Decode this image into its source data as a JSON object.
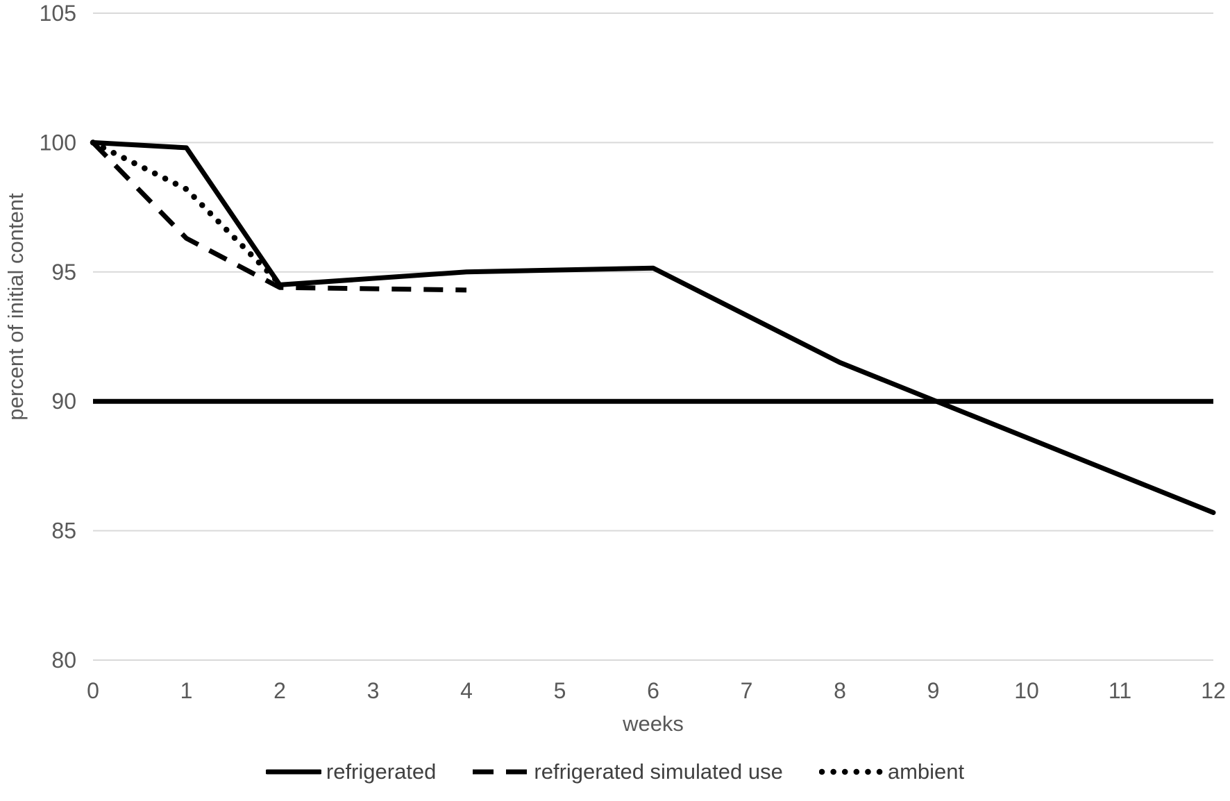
{
  "chart_data": {
    "type": "line",
    "title": "",
    "xlabel": "weeks",
    "ylabel": "percent of initial content",
    "xlim": [
      0,
      12
    ],
    "ylim": [
      80,
      105
    ],
    "x_ticks": [
      0,
      1,
      2,
      3,
      4,
      5,
      6,
      7,
      8,
      9,
      10,
      11,
      12
    ],
    "y_ticks": [
      105,
      100,
      95,
      90,
      85,
      80
    ],
    "grid": "horizontal-light-gray",
    "legend_position": "bottom-center",
    "series": [
      {
        "name": "refrigerated",
        "style": "solid",
        "color": "#000000",
        "points": [
          [
            0,
            100
          ],
          [
            1,
            99.8
          ],
          [
            2,
            94.5
          ],
          [
            4,
            95.0
          ],
          [
            6,
            95.15
          ],
          [
            8,
            91.5
          ],
          [
            12,
            85.7
          ]
        ]
      },
      {
        "name": "refrigerated simulated use",
        "style": "dashed",
        "color": "#000000",
        "points": [
          [
            0,
            100
          ],
          [
            1,
            96.3
          ],
          [
            2,
            94.4
          ],
          [
            4,
            94.3
          ]
        ]
      },
      {
        "name": "ambient",
        "style": "dotted",
        "color": "#000000",
        "points": [
          [
            0,
            100
          ],
          [
            1,
            98.2
          ],
          [
            2,
            94.55
          ]
        ]
      }
    ],
    "reference_line": {
      "value": 90,
      "style": "solid",
      "color": "#000000"
    }
  },
  "colors": {
    "background": "#ffffff",
    "grid": "#d9d9d9",
    "tick_label": "#595959",
    "axis_title": "#595959",
    "legend_text": "#404040",
    "line": "#000000"
  }
}
